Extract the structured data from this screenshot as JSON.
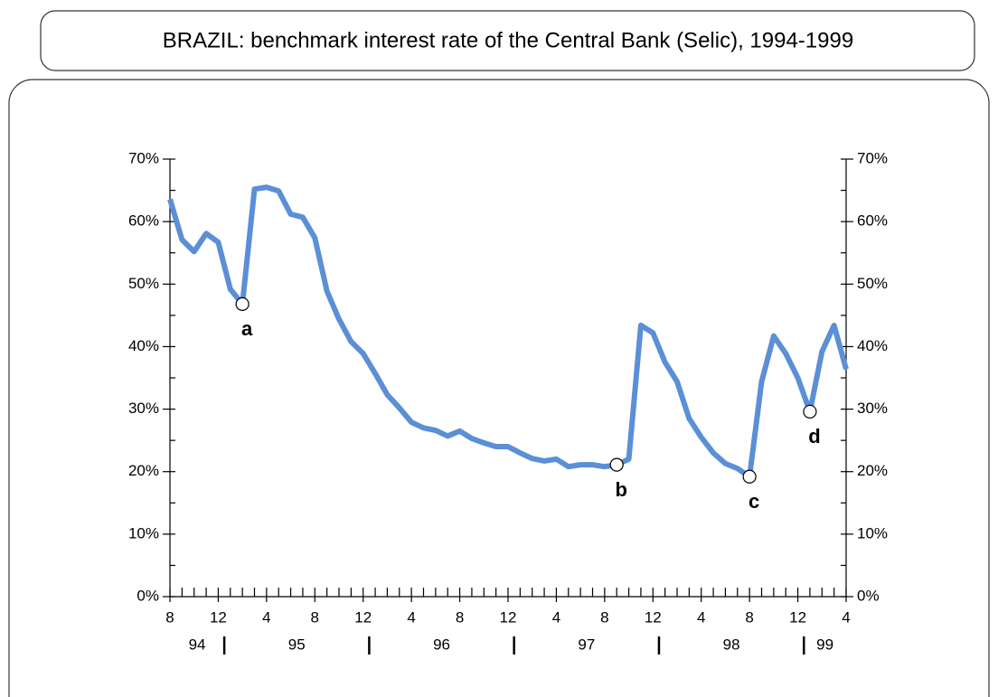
{
  "chart_data": {
    "type": "line",
    "title": "BRAZIL: benchmark interest rate of the Central Bank (Selic), 1994-1999",
    "categories": [
      "8",
      null,
      null,
      null,
      "12",
      null,
      null,
      null,
      "4",
      null,
      null,
      null,
      "8",
      null,
      null,
      null,
      "12",
      null,
      null,
      null,
      "4",
      null,
      null,
      null,
      "8",
      null,
      null,
      null,
      "12",
      null,
      null,
      null,
      "4",
      null,
      null,
      null,
      "8",
      null,
      null,
      null,
      "12",
      null,
      null,
      null,
      "4",
      null,
      null,
      null,
      "8",
      null,
      null,
      null,
      "12",
      null,
      null,
      null,
      "4"
    ],
    "year_labels": [
      "94",
      "95",
      "96",
      "97",
      "98",
      "99"
    ],
    "series": [
      {
        "name": "Selic",
        "color": "#5b8fd6",
        "values": [
          63.6,
          57.1,
          55.2,
          58.1,
          56.7,
          49.2,
          46.8,
          65.2,
          65.5,
          64.9,
          61.2,
          60.7,
          57.4,
          48.9,
          44.4,
          40.8,
          38.9,
          35.7,
          32.3,
          30.2,
          27.9,
          27.0,
          26.6,
          25.7,
          26.5,
          25.3,
          24.6,
          24.0,
          24.0,
          23.0,
          22.1,
          21.7,
          22.0,
          20.8,
          21.1,
          21.1,
          20.8,
          21.1,
          22.0,
          43.4,
          42.2,
          37.5,
          34.4,
          28.5,
          25.5,
          23.0,
          21.3,
          20.5,
          19.2,
          34.4,
          41.7,
          38.9,
          35.0,
          29.6,
          39.2,
          43.4,
          36.4
        ]
      }
    ],
    "markers": [
      {
        "label": "a",
        "point_index": 6
      },
      {
        "label": "b",
        "point_index": 37
      },
      {
        "label": "c",
        "point_index": 48
      },
      {
        "label": "d",
        "point_index": 53
      }
    ],
    "ylim": [
      0,
      70
    ],
    "yticks": [
      {
        "value": 0,
        "label": "0%"
      },
      {
        "value": 10,
        "label": "10%"
      },
      {
        "value": 20,
        "label": "20%"
      },
      {
        "value": 30,
        "label": "30%"
      },
      {
        "value": 40,
        "label": "40%"
      },
      {
        "value": 50,
        "label": "50%"
      },
      {
        "value": 60,
        "label": "60%"
      },
      {
        "value": 70,
        "label": "70%"
      }
    ],
    "y_minor_ticks": [
      5,
      15,
      25,
      35,
      45,
      55,
      65
    ],
    "right_axis": true
  }
}
